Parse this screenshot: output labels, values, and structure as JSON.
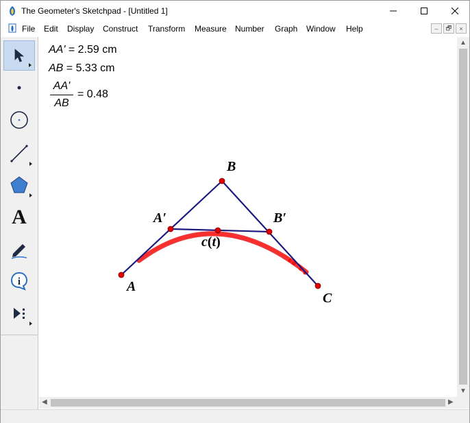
{
  "window": {
    "title": "The Geometer's Sketchpad - [Untitled 1]",
    "controls": {
      "minimize": "—",
      "maximize": "☐",
      "close": "✕"
    }
  },
  "menubar": {
    "items": [
      "File",
      "Edit",
      "Display",
      "Construct",
      "Transform",
      "Measure",
      "Number",
      "Graph",
      "Window",
      "Help"
    ],
    "mdi_controls": [
      "–",
      "🗗",
      "×"
    ]
  },
  "toolbox": {
    "tools": [
      {
        "name": "selection-arrow-tool",
        "icon": "arrow-cursor-icon",
        "selected": true
      },
      {
        "name": "point-tool",
        "icon": "point-icon",
        "selected": false
      },
      {
        "name": "compass-tool",
        "icon": "circle-icon",
        "selected": false
      },
      {
        "name": "straightedge-tool",
        "icon": "segment-icon",
        "selected": false
      },
      {
        "name": "polygon-tool",
        "icon": "pentagon-icon",
        "selected": false
      },
      {
        "name": "text-tool",
        "icon": "letter-a-icon",
        "selected": false
      },
      {
        "name": "marker-tool",
        "icon": "pen-icon",
        "selected": false
      },
      {
        "name": "information-tool",
        "icon": "info-icon",
        "selected": false
      },
      {
        "name": "custom-tool",
        "icon": "play-dots-icon",
        "selected": false
      }
    ],
    "text_tool_glyph": "A",
    "info_tool_glyph": "i"
  },
  "measurements": {
    "aa_prime": {
      "label": "AA'",
      "equals": " = 2.59 cm"
    },
    "ab": {
      "label": "AB",
      "equals": " = 5.33 cm"
    },
    "ratio": {
      "numerator": "AA'",
      "denominator": "AB",
      "equals": "= 0.48"
    }
  },
  "points": {
    "A": "A",
    "B": "B",
    "C": "C",
    "A_prime": "A′",
    "B_prime": "B′",
    "c_t_c": "c",
    "c_t_open": "(",
    "c_t_t": "t",
    "c_t_close": ")"
  },
  "colors": {
    "segment": "#1a1a80",
    "point": "#e00000",
    "trace": "#ee1111",
    "tool_selected": "#c9dbf0"
  },
  "scrollbars": {
    "up": "▲",
    "down": "▼",
    "left": "◀",
    "right": "▶"
  }
}
